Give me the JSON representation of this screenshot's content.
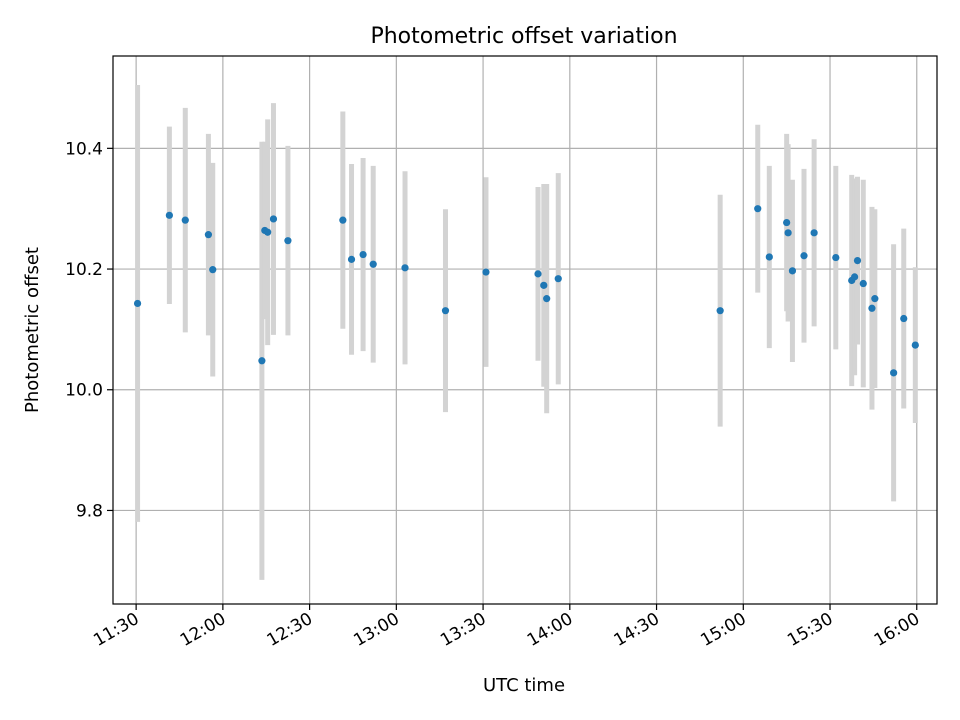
{
  "chart_data": {
    "type": "scatter",
    "title": "Photometric offset variation",
    "xlabel": "UTC time",
    "ylabel": "Photometric offset",
    "xlim": [
      "11:22",
      "16:07"
    ],
    "ylim": [
      9.645,
      10.553
    ],
    "x_ticks": [
      "11:30",
      "12:00",
      "12:30",
      "13:00",
      "13:30",
      "14:00",
      "14:30",
      "15:00",
      "15:30",
      "16:00"
    ],
    "y_ticks": [
      9.8,
      10.0,
      10.2,
      10.4
    ],
    "y_tick_labels": [
      "9.8",
      "10.0",
      "10.2",
      "10.4"
    ],
    "grid": true,
    "marker_color": "#1f77b4",
    "errorbar_color": "#d3d3d3",
    "series": [
      {
        "points": [
          {
            "t": "11:30:30",
            "y": 10.143,
            "err": 0.362
          },
          {
            "t": "11:41:30",
            "y": 10.289,
            "err": 0.147
          },
          {
            "t": "11:47:00",
            "y": 10.281,
            "err": 0.186
          },
          {
            "t": "11:55:00",
            "y": 10.257,
            "err": 0.167
          },
          {
            "t": "11:56:30",
            "y": 10.199,
            "err": 0.177
          },
          {
            "t": "12:13:30",
            "y": 10.048,
            "err": 0.363
          },
          {
            "t": "12:14:30",
            "y": 10.264,
            "err": 0.147
          },
          {
            "t": "12:15:30",
            "y": 10.261,
            "err": 0.187
          },
          {
            "t": "12:17:30",
            "y": 10.283,
            "err": 0.192
          },
          {
            "t": "12:22:30",
            "y": 10.247,
            "err": 0.157
          },
          {
            "t": "12:41:30",
            "y": 10.281,
            "err": 0.18
          },
          {
            "t": "12:44:30",
            "y": 10.216,
            "err": 0.158
          },
          {
            "t": "12:48:30",
            "y": 10.224,
            "err": 0.16
          },
          {
            "t": "12:52:00",
            "y": 10.208,
            "err": 0.163
          },
          {
            "t": "13:03:00",
            "y": 10.202,
            "err": 0.16
          },
          {
            "t": "13:17:00",
            "y": 10.131,
            "err": 0.168
          },
          {
            "t": "13:31:00",
            "y": 10.195,
            "err": 0.157
          },
          {
            "t": "13:49:00",
            "y": 10.192,
            "err": 0.144
          },
          {
            "t": "13:51:00",
            "y": 10.173,
            "err": 0.168
          },
          {
            "t": "13:52:00",
            "y": 10.151,
            "err": 0.19
          },
          {
            "t": "13:56:00",
            "y": 10.184,
            "err": 0.175
          },
          {
            "t": "14:52:00",
            "y": 10.131,
            "err": 0.192
          },
          {
            "t": "15:05:00",
            "y": 10.3,
            "err": 0.139
          },
          {
            "t": "15:09:00",
            "y": 10.22,
            "err": 0.151
          },
          {
            "t": "15:15:00",
            "y": 10.277,
            "err": 0.147
          },
          {
            "t": "15:15:30",
            "y": 10.26,
            "err": 0.147
          },
          {
            "t": "15:17:00",
            "y": 10.197,
            "err": 0.151
          },
          {
            "t": "15:21:00",
            "y": 10.222,
            "err": 0.144
          },
          {
            "t": "15:24:30",
            "y": 10.26,
            "err": 0.155
          },
          {
            "t": "15:32:00",
            "y": 10.219,
            "err": 0.152
          },
          {
            "t": "15:37:30",
            "y": 10.181,
            "err": 0.175
          },
          {
            "t": "15:38:30",
            "y": 10.187,
            "err": 0.163
          },
          {
            "t": "15:39:30",
            "y": 10.214,
            "err": 0.139
          },
          {
            "t": "15:41:30",
            "y": 10.176,
            "err": 0.172
          },
          {
            "t": "15:44:30",
            "y": 10.135,
            "err": 0.168
          },
          {
            "t": "15:45:30",
            "y": 10.151,
            "err": 0.148
          },
          {
            "t": "15:52:00",
            "y": 10.028,
            "err": 0.213
          },
          {
            "t": "15:55:30",
            "y": 10.118,
            "err": 0.149
          },
          {
            "t": "15:59:30",
            "y": 10.074,
            "err": 0.129
          }
        ]
      }
    ]
  }
}
